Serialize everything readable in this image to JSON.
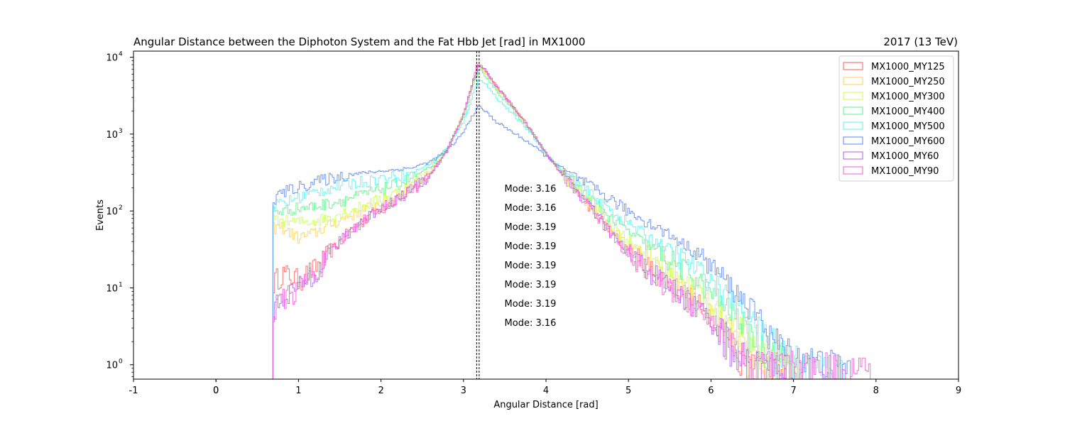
{
  "chart_data": {
    "type": "histogram",
    "title": "Angular Distance between the Diphoton System and the Fat Hbb Jet [rad] in MX1000",
    "title_right": "2017 (13 TeV)",
    "xlabel": "Angular Distance [rad]",
    "ylabel": "Events",
    "xlim": [
      -1,
      9
    ],
    "ylim": [
      0.65,
      12000
    ],
    "yscale": "log",
    "x_ticks": [
      "-1",
      "0",
      "0",
      "1",
      "2",
      "3",
      "4",
      "5",
      "6",
      "7",
      "8",
      "9"
    ],
    "x_tick_values": [
      -1,
      0,
      0,
      1,
      2,
      3,
      4,
      5,
      6,
      7,
      8,
      9
    ],
    "y_ticks": [
      {
        "base": "10",
        "exp": "0",
        "value": 1
      },
      {
        "base": "10",
        "exp": "1",
        "value": 10
      },
      {
        "base": "10",
        "exp": "2",
        "value": 100
      },
      {
        "base": "10",
        "exp": "3",
        "value": 1000
      },
      {
        "base": "10",
        "exp": "4",
        "value": 10000
      }
    ],
    "mode_lines": [
      3.16,
      3.19
    ],
    "legend_position": "upper right",
    "series": [
      {
        "name": "MX1000_MY125",
        "color": "#ff5e5e",
        "mode_label": "Mode: 3.16",
        "points": [
          [
            0.69,
            0.65
          ],
          [
            0.7,
            12
          ],
          [
            0.8,
            16
          ],
          [
            1.0,
            13
          ],
          [
            1.2,
            18
          ],
          [
            1.4,
            30
          ],
          [
            1.6,
            52
          ],
          [
            1.8,
            80
          ],
          [
            2.0,
            112
          ],
          [
            2.2,
            145
          ],
          [
            2.4,
            200
          ],
          [
            2.6,
            300
          ],
          [
            2.8,
            600
          ],
          [
            3.0,
            1800
          ],
          [
            3.1,
            4200
          ],
          [
            3.17,
            7900
          ],
          [
            3.25,
            7000
          ],
          [
            3.4,
            4200
          ],
          [
            3.6,
            2300
          ],
          [
            3.8,
            1200
          ],
          [
            4.0,
            560
          ],
          [
            4.2,
            300
          ],
          [
            4.4,
            170
          ],
          [
            4.6,
            95
          ],
          [
            4.8,
            52
          ],
          [
            5.0,
            30
          ],
          [
            5.2,
            21
          ],
          [
            5.4,
            14
          ],
          [
            5.6,
            10
          ],
          [
            5.8,
            7
          ],
          [
            6.0,
            4.5
          ],
          [
            6.2,
            2.5
          ],
          [
            6.35,
            1.5
          ],
          [
            6.5,
            1.0
          ],
          [
            6.9,
            0.9
          ]
        ]
      },
      {
        "name": "MX1000_MY250",
        "color": "#ffd24d",
        "mode_label": "Mode: 3.16",
        "points": [
          [
            0.69,
            0.65
          ],
          [
            0.7,
            60
          ],
          [
            0.8,
            62
          ],
          [
            1.0,
            45
          ],
          [
            1.2,
            52
          ],
          [
            1.4,
            68
          ],
          [
            1.6,
            85
          ],
          [
            1.8,
            105
          ],
          [
            2.0,
            130
          ],
          [
            2.2,
            160
          ],
          [
            2.4,
            215
          ],
          [
            2.6,
            320
          ],
          [
            2.8,
            620
          ],
          [
            3.0,
            1800
          ],
          [
            3.1,
            4100
          ],
          [
            3.17,
            7800
          ],
          [
            3.25,
            6900
          ],
          [
            3.4,
            4100
          ],
          [
            3.6,
            2250
          ],
          [
            3.8,
            1200
          ],
          [
            4.0,
            560
          ],
          [
            4.2,
            300
          ],
          [
            4.4,
            175
          ],
          [
            4.6,
            100
          ],
          [
            4.8,
            58
          ],
          [
            5.0,
            35
          ],
          [
            5.2,
            24
          ],
          [
            5.4,
            16
          ],
          [
            5.6,
            12
          ],
          [
            5.8,
            8
          ],
          [
            6.0,
            5
          ],
          [
            6.2,
            3
          ],
          [
            6.35,
            1.8
          ],
          [
            6.5,
            1.1
          ],
          [
            6.95,
            0.9
          ]
        ]
      },
      {
        "name": "MX1000_MY300",
        "color": "#c9ff4d",
        "mode_label": "Mode: 3.19",
        "points": [
          [
            0.69,
            0.65
          ],
          [
            0.7,
            75
          ],
          [
            0.8,
            75
          ],
          [
            1.0,
            72
          ],
          [
            1.2,
            75
          ],
          [
            1.4,
            85
          ],
          [
            1.6,
            100
          ],
          [
            1.8,
            118
          ],
          [
            2.0,
            145
          ],
          [
            2.2,
            175
          ],
          [
            2.4,
            230
          ],
          [
            2.6,
            330
          ],
          [
            2.8,
            620
          ],
          [
            3.0,
            1750
          ],
          [
            3.1,
            4000
          ],
          [
            3.19,
            7500
          ],
          [
            3.25,
            6700
          ],
          [
            3.4,
            4000
          ],
          [
            3.6,
            2200
          ],
          [
            3.8,
            1200
          ],
          [
            4.0,
            560
          ],
          [
            4.2,
            310
          ],
          [
            4.4,
            185
          ],
          [
            4.6,
            110
          ],
          [
            4.8,
            66
          ],
          [
            5.0,
            42
          ],
          [
            5.2,
            30
          ],
          [
            5.4,
            21
          ],
          [
            5.6,
            15
          ],
          [
            5.8,
            10
          ],
          [
            6.0,
            6.5
          ],
          [
            6.2,
            4
          ],
          [
            6.4,
            2.5
          ],
          [
            6.6,
            1.5
          ],
          [
            7.0,
            1.0
          ],
          [
            7.2,
            0.9
          ]
        ]
      },
      {
        "name": "MX1000_MY400",
        "color": "#5cf28a",
        "mode_label": "Mode: 3.19",
        "points": [
          [
            0.69,
            0.65
          ],
          [
            0.7,
            100
          ],
          [
            0.8,
            100
          ],
          [
            1.0,
            110
          ],
          [
            1.2,
            115
          ],
          [
            1.4,
            128
          ],
          [
            1.6,
            145
          ],
          [
            1.8,
            165
          ],
          [
            2.0,
            195
          ],
          [
            2.2,
            225
          ],
          [
            2.4,
            280
          ],
          [
            2.6,
            370
          ],
          [
            2.8,
            640
          ],
          [
            3.0,
            1600
          ],
          [
            3.1,
            3700
          ],
          [
            3.19,
            6800
          ],
          [
            3.25,
            6100
          ],
          [
            3.4,
            3700
          ],
          [
            3.6,
            2050
          ],
          [
            3.8,
            1150
          ],
          [
            4.0,
            560
          ],
          [
            4.2,
            320
          ],
          [
            4.4,
            200
          ],
          [
            4.6,
            125
          ],
          [
            4.8,
            80
          ],
          [
            5.0,
            54
          ],
          [
            5.2,
            38
          ],
          [
            5.4,
            28
          ],
          [
            5.6,
            20
          ],
          [
            5.8,
            14
          ],
          [
            6.0,
            9
          ],
          [
            6.2,
            5.5
          ],
          [
            6.4,
            3.5
          ],
          [
            6.6,
            2
          ],
          [
            6.9,
            1.2
          ],
          [
            7.0,
            0.9
          ]
        ]
      },
      {
        "name": "MX1000_MY500",
        "color": "#5cf2f2",
        "mode_label": "Mode: 3.19",
        "points": [
          [
            0.69,
            0.65
          ],
          [
            0.7,
            120
          ],
          [
            0.8,
            125
          ],
          [
            1.0,
            150
          ],
          [
            1.2,
            175
          ],
          [
            1.4,
            200
          ],
          [
            1.6,
            225
          ],
          [
            1.8,
            245
          ],
          [
            2.0,
            265
          ],
          [
            2.2,
            285
          ],
          [
            2.4,
            320
          ],
          [
            2.6,
            420
          ],
          [
            2.8,
            650
          ],
          [
            3.0,
            1400
          ],
          [
            3.1,
            2900
          ],
          [
            3.19,
            5300
          ],
          [
            3.25,
            4800
          ],
          [
            3.4,
            3000
          ],
          [
            3.6,
            1800
          ],
          [
            3.8,
            1080
          ],
          [
            4.0,
            560
          ],
          [
            4.2,
            340
          ],
          [
            4.4,
            225
          ],
          [
            4.6,
            150
          ],
          [
            4.8,
            100
          ],
          [
            5.0,
            70
          ],
          [
            5.2,
            50
          ],
          [
            5.4,
            37
          ],
          [
            5.6,
            27
          ],
          [
            5.8,
            19
          ],
          [
            6.0,
            13
          ],
          [
            6.2,
            8
          ],
          [
            6.4,
            5
          ],
          [
            6.6,
            3
          ],
          [
            6.9,
            1.5
          ],
          [
            7.2,
            1.0
          ],
          [
            7.6,
            0.9
          ]
        ]
      },
      {
        "name": "MX1000_MY600",
        "color": "#5a85f0",
        "mode_label": "Mode: 3.19",
        "points": [
          [
            0.69,
            0.65
          ],
          [
            0.7,
            140
          ],
          [
            0.8,
            175
          ],
          [
            1.0,
            205
          ],
          [
            1.2,
            240
          ],
          [
            1.4,
            270
          ],
          [
            1.6,
            295
          ],
          [
            1.8,
            315
          ],
          [
            2.0,
            330
          ],
          [
            2.2,
            345
          ],
          [
            2.4,
            370
          ],
          [
            2.6,
            440
          ],
          [
            2.8,
            600
          ],
          [
            3.0,
            1050
          ],
          [
            3.1,
            1700
          ],
          [
            3.19,
            2300
          ],
          [
            3.25,
            2050
          ],
          [
            3.4,
            1450
          ],
          [
            3.6,
            1050
          ],
          [
            3.8,
            770
          ],
          [
            4.0,
            520
          ],
          [
            4.2,
            360
          ],
          [
            4.4,
            260
          ],
          [
            4.6,
            190
          ],
          [
            4.8,
            140
          ],
          [
            5.0,
            100
          ],
          [
            5.2,
            75
          ],
          [
            5.4,
            57
          ],
          [
            5.6,
            42
          ],
          [
            5.8,
            30
          ],
          [
            6.0,
            20
          ],
          [
            6.2,
            12
          ],
          [
            6.4,
            7
          ],
          [
            6.6,
            4
          ],
          [
            6.8,
            2
          ],
          [
            7.0,
            1.3
          ],
          [
            7.5,
            1.0
          ],
          [
            7.7,
            0.9
          ]
        ]
      },
      {
        "name": "MX1000_MY60",
        "color": "#b05cf2",
        "mode_label": "Mode: 3.19",
        "points": [
          [
            0.69,
            0.65
          ],
          [
            0.7,
            5
          ],
          [
            0.8,
            8
          ],
          [
            1.0,
            10
          ],
          [
            1.2,
            17
          ],
          [
            1.4,
            30
          ],
          [
            1.6,
            52
          ],
          [
            1.8,
            80
          ],
          [
            2.0,
            110
          ],
          [
            2.2,
            145
          ],
          [
            2.4,
            200
          ],
          [
            2.6,
            300
          ],
          [
            2.8,
            600
          ],
          [
            3.0,
            1800
          ],
          [
            3.1,
            4200
          ],
          [
            3.19,
            8000
          ],
          [
            3.25,
            7100
          ],
          [
            3.4,
            4200
          ],
          [
            3.6,
            2300
          ],
          [
            3.8,
            1200
          ],
          [
            4.0,
            560
          ],
          [
            4.2,
            300
          ],
          [
            4.4,
            170
          ],
          [
            4.6,
            93
          ],
          [
            4.8,
            50
          ],
          [
            5.0,
            28
          ],
          [
            5.2,
            19
          ],
          [
            5.4,
            13
          ],
          [
            5.6,
            9
          ],
          [
            5.8,
            6
          ],
          [
            6.0,
            4
          ],
          [
            6.2,
            2.2
          ],
          [
            6.35,
            1.4
          ],
          [
            6.5,
            1.0
          ],
          [
            6.9,
            0.9
          ]
        ]
      },
      {
        "name": "MX1000_MY90",
        "color": "#f25cd2",
        "mode_label": "Mode: 3.16",
        "points": [
          [
            0.69,
            0.65
          ],
          [
            0.7,
            5
          ],
          [
            0.8,
            7
          ],
          [
            1.0,
            10
          ],
          [
            1.2,
            17
          ],
          [
            1.4,
            29
          ],
          [
            1.6,
            50
          ],
          [
            1.8,
            78
          ],
          [
            2.0,
            108
          ],
          [
            2.2,
            142
          ],
          [
            2.4,
            198
          ],
          [
            2.6,
            298
          ],
          [
            2.8,
            600
          ],
          [
            3.0,
            1800
          ],
          [
            3.1,
            4200
          ],
          [
            3.16,
            8100
          ],
          [
            3.25,
            7100
          ],
          [
            3.4,
            4200
          ],
          [
            3.6,
            2300
          ],
          [
            3.8,
            1200
          ],
          [
            4.0,
            560
          ],
          [
            4.2,
            300
          ],
          [
            4.4,
            168
          ],
          [
            4.6,
            92
          ],
          [
            4.8,
            50
          ],
          [
            5.0,
            28
          ],
          [
            5.2,
            18
          ],
          [
            5.4,
            12
          ],
          [
            5.6,
            8.5
          ],
          [
            5.8,
            6
          ],
          [
            6.0,
            4
          ],
          [
            6.2,
            2.2
          ],
          [
            6.35,
            1.4
          ],
          [
            6.6,
            1.0
          ],
          [
            7.95,
            0.9
          ]
        ]
      }
    ]
  }
}
